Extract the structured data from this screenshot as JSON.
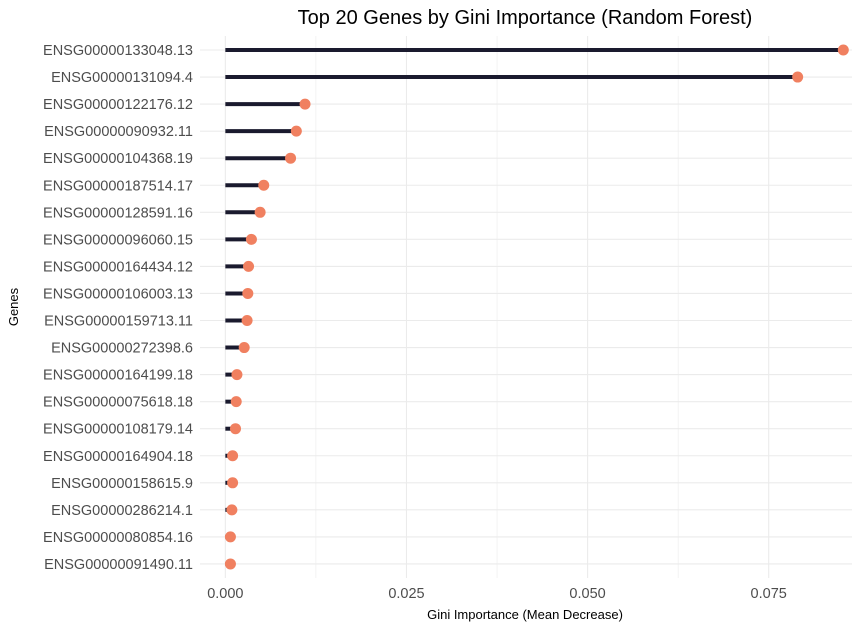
{
  "chart_data": {
    "type": "lollipop",
    "title": "Top 20 Genes by Gini Importance (Random Forest)",
    "xlabel": "Gini Importance (Mean Decrease)",
    "ylabel": "Genes",
    "xlim": [
      -0.0035,
      0.0865
    ],
    "xticks": [
      0.0,
      0.025,
      0.05,
      0.075
    ],
    "xtick_labels": [
      "0.000",
      "0.025",
      "0.050",
      "0.075"
    ],
    "grid": true,
    "orientation": "horizontal",
    "categories": [
      "ENSG00000133048.13",
      "ENSG00000131094.4",
      "ENSG00000122176.12",
      "ENSG00000090932.11",
      "ENSG00000104368.19",
      "ENSG00000187514.17",
      "ENSG00000128591.16",
      "ENSG00000096060.15",
      "ENSG00000164434.12",
      "ENSG00000106003.13",
      "ENSG00000159713.11",
      "ENSG00000272398.6",
      "ENSG00000164199.18",
      "ENSG00000075618.18",
      "ENSG00000108179.14",
      "ENSG00000164904.18",
      "ENSG00000158615.9",
      "ENSG00000286214.1",
      "ENSG00000080854.16",
      "ENSG00000091490.11"
    ],
    "values": [
      0.0853,
      0.079,
      0.011,
      0.0098,
      0.009,
      0.0053,
      0.0048,
      0.0036,
      0.0032,
      0.0031,
      0.003,
      0.0026,
      0.0016,
      0.0015,
      0.0014,
      0.001,
      0.001,
      0.0009,
      0.0007,
      0.0007
    ],
    "colors": {
      "stem": "#1a1a2e",
      "point": "#f08060",
      "grid": "#ebebeb"
    }
  }
}
